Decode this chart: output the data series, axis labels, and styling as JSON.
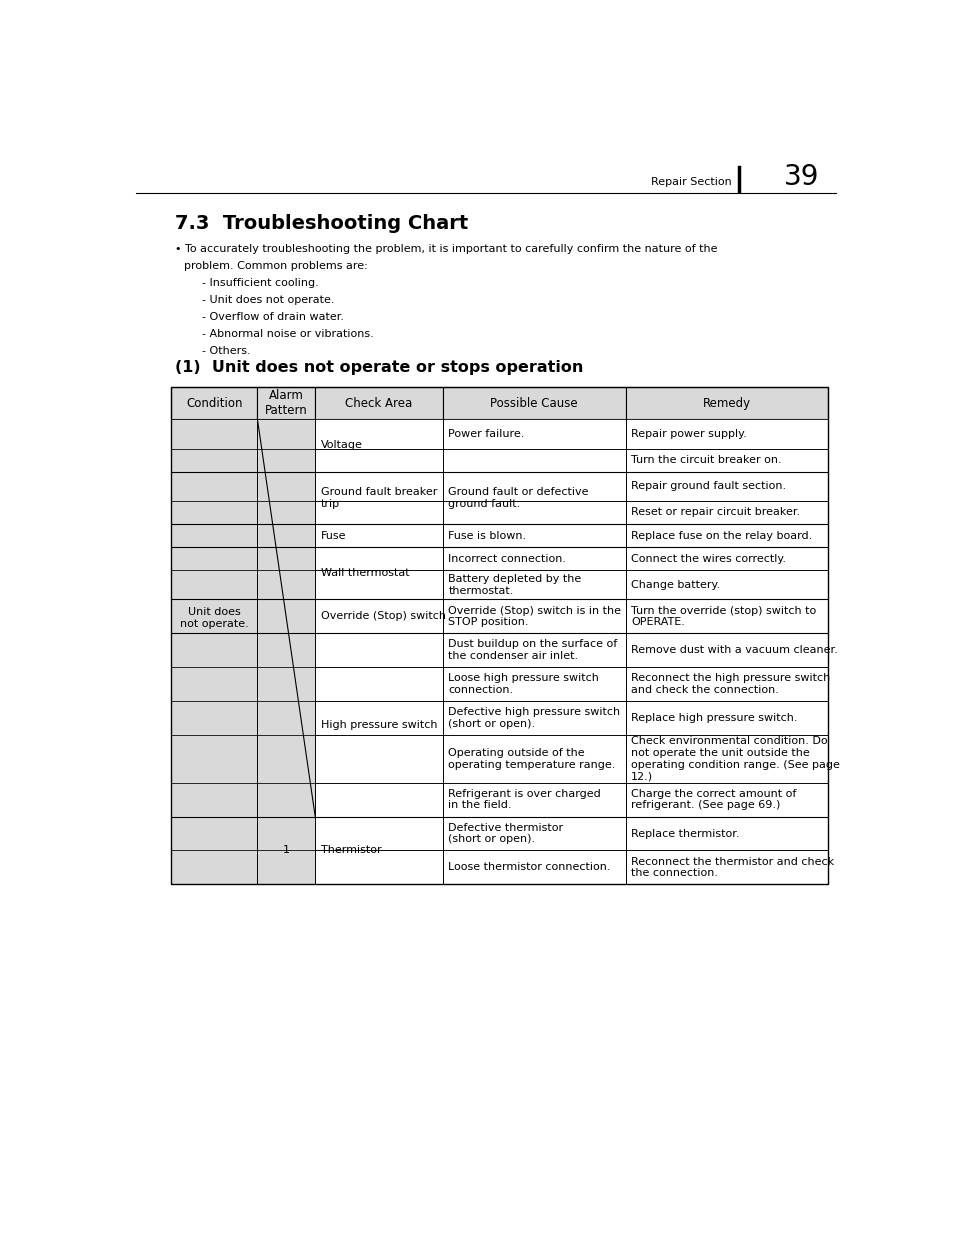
{
  "page_number": "39",
  "header_text": "Repair Section",
  "section_title": "7.3  Troubleshooting Chart",
  "bullet_intro_line1": "• To accurately troubleshooting the problem, it is important to carefully confirm the nature of the",
  "bullet_intro_line2": "   problem. Common problems are:",
  "bullet_items": [
    "- Insufficient cooling.",
    "- Unit does not operate.",
    "- Overflow of drain water.",
    "- Abnormal noise or vibrations.",
    "- Others."
  ],
  "subsection_title": "(1)  Unit does not operate or stops operation",
  "table_headers": [
    "Condition",
    "Alarm\nPattern",
    "Check Area",
    "Possible Cause",
    "Remedy"
  ],
  "header_bg": "#d9d9d9",
  "condition_bg": "#d9d9d9",
  "white_bg": "#ffffff",
  "font_size_body": 8.0,
  "font_size_header": 8.5,
  "font_size_title": 14,
  "font_size_subsection": 11.5,
  "font_size_page": 18
}
